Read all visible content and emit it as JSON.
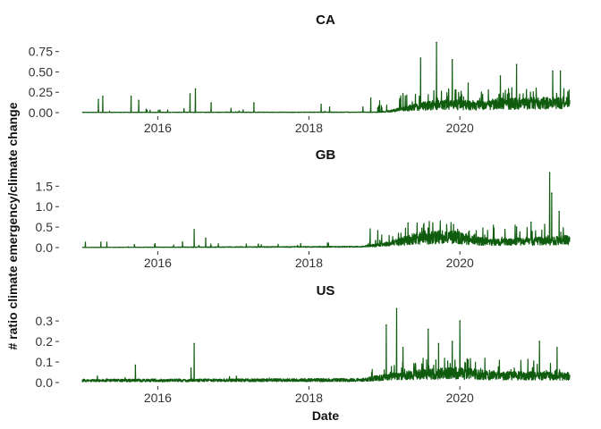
{
  "colors": {
    "series": "#0f5c0f",
    "text": "#111111",
    "tick": "#333333"
  },
  "chart_data": {
    "type": "line",
    "xlabel": "Date",
    "ylabel": "# ratio climate emergency/climate change",
    "x_range": [
      "2015-01-01",
      "2021-06-15"
    ],
    "x_ticks": [
      "2016-01-01",
      "2018-01-01",
      "2020-01-01"
    ],
    "x_tick_labels": [
      "2016",
      "2018",
      "2020"
    ],
    "grid": false,
    "legend": "none",
    "panels": [
      {
        "name": "CA",
        "ylim": [
          0,
          0.9
        ],
        "y_ticks": [
          0,
          0.25,
          0.5,
          0.75
        ],
        "y_tick_labels": [
          "0.00",
          "0.25",
          "0.50",
          "0.75"
        ],
        "peaks": [
          {
            "date": "2015-03-20",
            "value": 0.16
          },
          {
            "date": "2015-04-10",
            "value": 0.2
          },
          {
            "date": "2015-08-25",
            "value": 0.2
          },
          {
            "date": "2015-10-01",
            "value": 0.15
          },
          {
            "date": "2016-06-05",
            "value": 0.23
          },
          {
            "date": "2016-07-01",
            "value": 0.29
          },
          {
            "date": "2016-09-15",
            "value": 0.12
          },
          {
            "date": "2017-04-10",
            "value": 0.12
          },
          {
            "date": "2018-03-01",
            "value": 0.1
          },
          {
            "date": "2019-03-20",
            "value": 0.15
          },
          {
            "date": "2019-06-25",
            "value": 0.67
          },
          {
            "date": "2019-09-10",
            "value": 0.86
          },
          {
            "date": "2019-11-25",
            "value": 0.65
          },
          {
            "date": "2020-02-10",
            "value": 0.36
          },
          {
            "date": "2020-07-15",
            "value": 0.45
          },
          {
            "date": "2020-10-01",
            "value": 0.59
          },
          {
            "date": "2021-03-25",
            "value": 0.51
          },
          {
            "date": "2021-05-01",
            "value": 0.51
          }
        ],
        "trend": [
          {
            "date": "2015-01-01",
            "value": 0.003
          },
          {
            "date": "2018-12-01",
            "value": 0.005
          },
          {
            "date": "2019-02-01",
            "value": 0.02
          },
          {
            "date": "2019-06-01",
            "value": 0.07
          },
          {
            "date": "2019-09-15",
            "value": 0.1
          },
          {
            "date": "2020-03-01",
            "value": 0.09
          },
          {
            "date": "2020-09-01",
            "value": 0.11
          },
          {
            "date": "2021-06-15",
            "value": 0.12
          }
        ]
      },
      {
        "name": "GB",
        "ylim": [
          0,
          1.9
        ],
        "y_ticks": [
          0,
          0.5,
          1.0,
          1.5
        ],
        "y_tick_labels": [
          "0.0",
          "0.5",
          "1.0",
          "1.5"
        ],
        "peaks": [
          {
            "date": "2015-09-10",
            "value": 0.07
          },
          {
            "date": "2016-06-25",
            "value": 0.44
          },
          {
            "date": "2016-08-20",
            "value": 0.23
          },
          {
            "date": "2017-05-01",
            "value": 0.08
          },
          {
            "date": "2018-04-01",
            "value": 0.11
          },
          {
            "date": "2019-04-25",
            "value": 0.6
          },
          {
            "date": "2019-08-01",
            "value": 0.45
          },
          {
            "date": "2019-12-01",
            "value": 0.56
          },
          {
            "date": "2020-02-15",
            "value": 0.4
          },
          {
            "date": "2020-10-01",
            "value": 0.5
          },
          {
            "date": "2020-12-10",
            "value": 0.62
          },
          {
            "date": "2021-03-10",
            "value": 1.83
          },
          {
            "date": "2021-03-20",
            "value": 1.33
          },
          {
            "date": "2021-04-25",
            "value": 0.88
          }
        ],
        "trend": [
          {
            "date": "2015-01-01",
            "value": 0.004
          },
          {
            "date": "2018-09-01",
            "value": 0.02
          },
          {
            "date": "2019-01-01",
            "value": 0.07
          },
          {
            "date": "2019-06-01",
            "value": 0.22
          },
          {
            "date": "2019-12-01",
            "value": 0.27
          },
          {
            "date": "2020-03-01",
            "value": 0.17
          },
          {
            "date": "2020-07-01",
            "value": 0.13
          },
          {
            "date": "2021-06-15",
            "value": 0.18
          }
        ]
      },
      {
        "name": "US",
        "ylim": [
          0,
          0.37
        ],
        "y_ticks": [
          0,
          0.1,
          0.2,
          0.3
        ],
        "y_tick_labels": [
          "0.0",
          "0.1",
          "0.2",
          "0.3"
        ],
        "peaks": [
          {
            "date": "2015-03-15",
            "value": 0.03
          },
          {
            "date": "2015-09-15",
            "value": 0.085
          },
          {
            "date": "2016-06-25",
            "value": 0.19
          },
          {
            "date": "2016-06-10",
            "value": 0.07
          },
          {
            "date": "2017-01-15",
            "value": 0.03
          },
          {
            "date": "2019-01-10",
            "value": 0.28
          },
          {
            "date": "2019-03-01",
            "value": 0.36
          },
          {
            "date": "2019-04-01",
            "value": 0.17
          },
          {
            "date": "2019-08-01",
            "value": 0.26
          },
          {
            "date": "2019-09-20",
            "value": 0.19
          },
          {
            "date": "2019-11-25",
            "value": 0.2
          },
          {
            "date": "2020-01-01",
            "value": 0.3
          },
          {
            "date": "2020-02-10",
            "value": 0.11
          },
          {
            "date": "2021-01-20",
            "value": 0.2
          },
          {
            "date": "2021-04-15",
            "value": 0.17
          }
        ],
        "trend": [
          {
            "date": "2015-01-01",
            "value": 0.01
          },
          {
            "date": "2018-09-01",
            "value": 0.012
          },
          {
            "date": "2019-06-01",
            "value": 0.04
          },
          {
            "date": "2020-01-01",
            "value": 0.045
          },
          {
            "date": "2020-06-01",
            "value": 0.035
          },
          {
            "date": "2021-06-15",
            "value": 0.03
          }
        ]
      }
    ]
  }
}
